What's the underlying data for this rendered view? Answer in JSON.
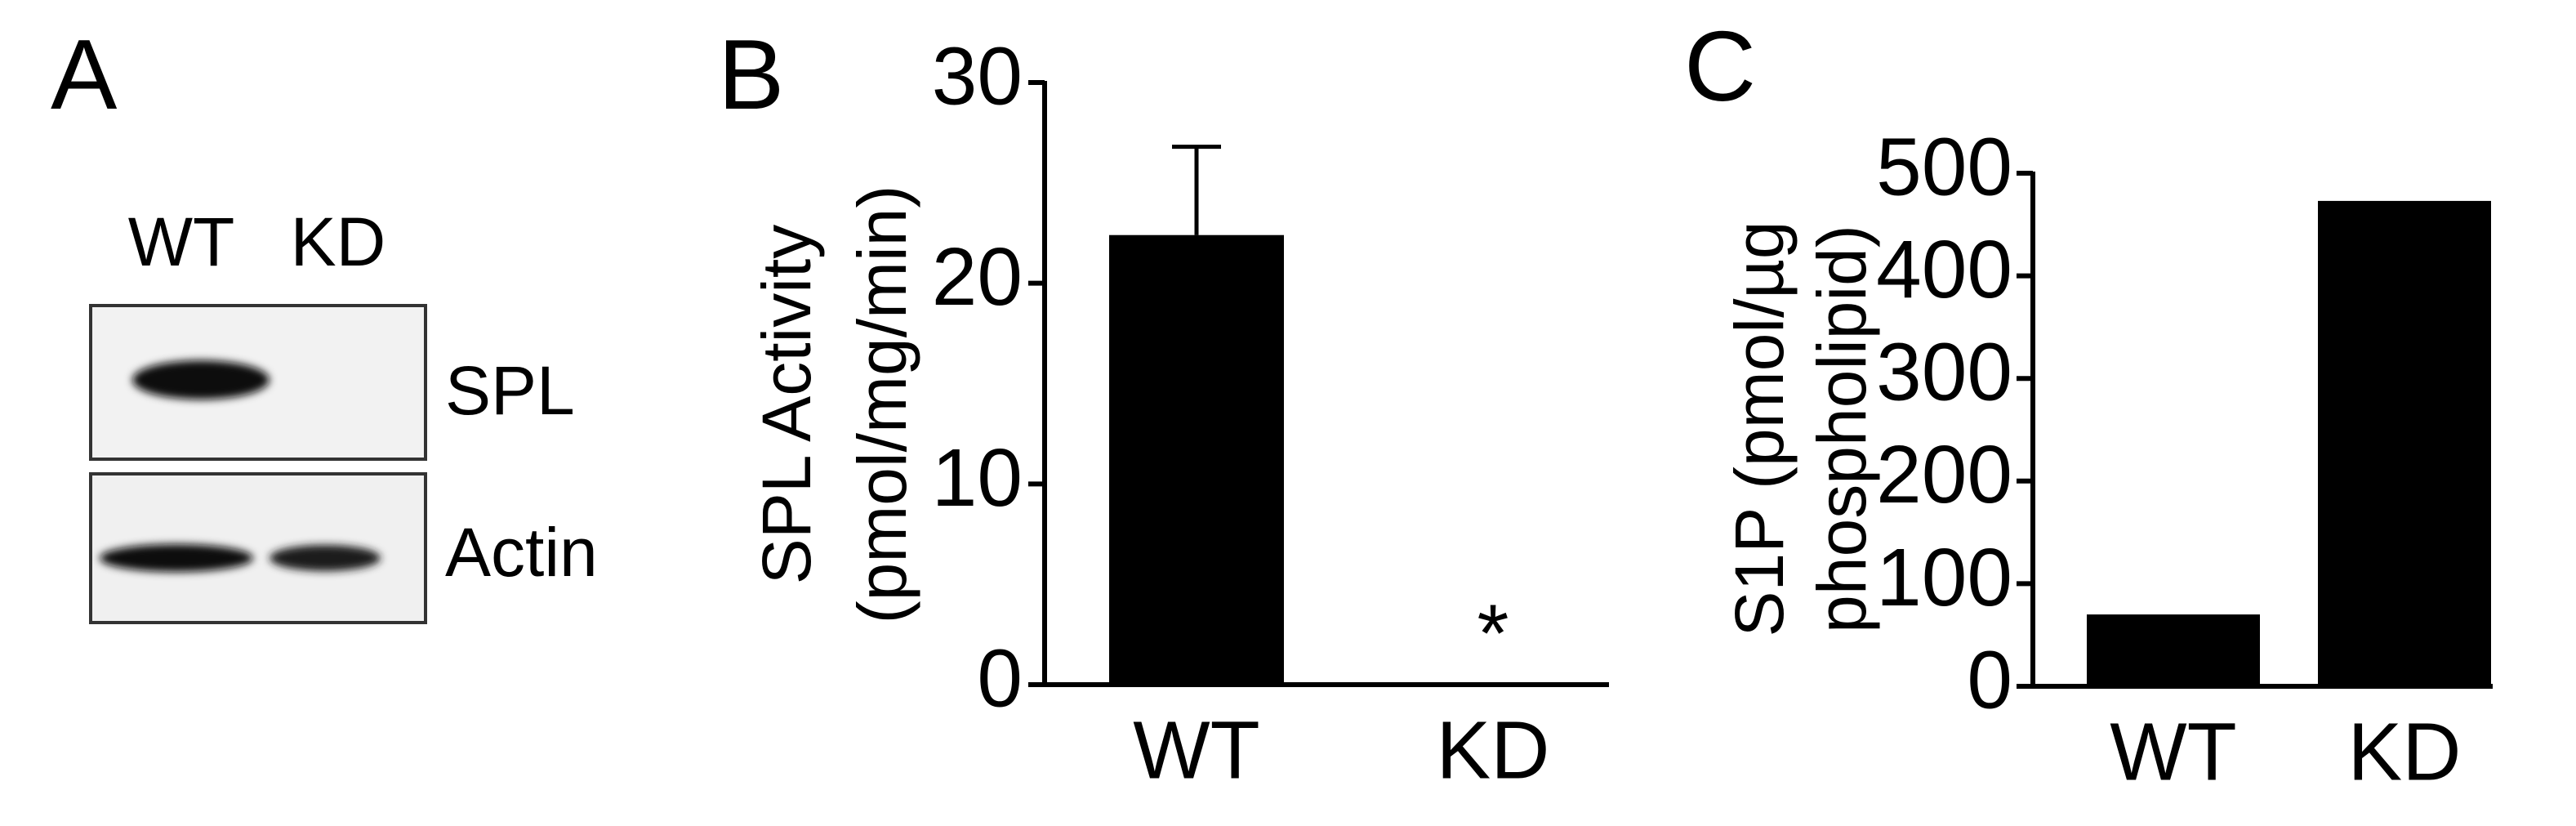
{
  "blot": {
    "panel": "A",
    "lanes": [
      "WT",
      "KD"
    ],
    "rows": [
      "SPL",
      "Actin"
    ]
  },
  "chart_data": [
    {
      "type": "bar",
      "panel": "B",
      "ylabel": [
        "SPL Activity",
        "(pmol/mg/min)"
      ],
      "categories": [
        "WT",
        "KD"
      ],
      "values": [
        22.4,
        0
      ],
      "errors": [
        4.4,
        null
      ],
      "color": "#000000",
      "ylim": [
        0,
        30
      ],
      "yticks": [
        0,
        10,
        20,
        30
      ],
      "annotations": [
        {
          "text": "*",
          "category": "KD"
        }
      ]
    },
    {
      "type": "bar",
      "panel": "C",
      "ylabel": [
        "S1P (pmol/µg",
        "phospholipid)"
      ],
      "categories": [
        "WT",
        "KD"
      ],
      "values": [
        70,
        473
      ],
      "color": "#000000",
      "ylim": [
        0,
        500
      ],
      "yticks": [
        0,
        100,
        200,
        300,
        400,
        500
      ]
    }
  ]
}
